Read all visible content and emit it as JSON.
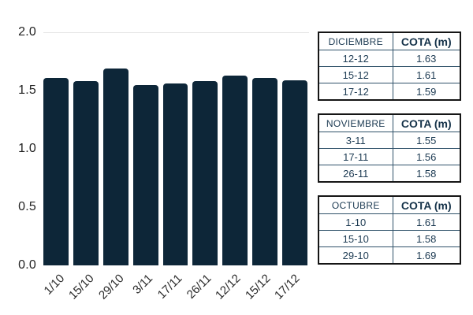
{
  "chart_data": {
    "type": "bar",
    "categories": [
      "1/10",
      "15/10",
      "29/10",
      "3/11",
      "17/11",
      "26/11",
      "12/12",
      "15/12",
      "17/12"
    ],
    "values": [
      1.61,
      1.58,
      1.69,
      1.55,
      1.56,
      1.58,
      1.63,
      1.61,
      1.59
    ],
    "title": "",
    "xlabel": "",
    "ylabel": "",
    "ylim": [
      0,
      2.0
    ],
    "yticks": [
      0.0,
      0.5,
      1.0,
      1.5,
      2.0
    ],
    "ytick_labels": [
      "0.0",
      "0.5",
      "1.0",
      "1.5",
      "2.0"
    ],
    "grid": "single horizontal gridline at y=2.0 only",
    "legend_position": "none",
    "bar_corner": "rounded-top"
  },
  "tables": [
    {
      "title": "DICIEMBRE",
      "value_header": "COTA (m)",
      "rows": [
        {
          "date": "12-12",
          "cota": "1.63"
        },
        {
          "date": "15-12",
          "cota": "1.61"
        },
        {
          "date": "17-12",
          "cota": "1.59"
        }
      ]
    },
    {
      "title": "NOVIEMBRE",
      "value_header": "COTA (m)",
      "rows": [
        {
          "date": "3-11",
          "cota": "1.55"
        },
        {
          "date": "17-11",
          "cota": "1.56"
        },
        {
          "date": "26-11",
          "cota": "1.58"
        }
      ]
    },
    {
      "title": "OCTUBRE",
      "value_header": "COTA (m)",
      "rows": [
        {
          "date": "1-10",
          "cota": "1.61"
        },
        {
          "date": "15-10",
          "cota": "1.58"
        },
        {
          "date": "29-10",
          "cota": "1.69"
        }
      ]
    }
  ],
  "colors": {
    "bar": "#0d2638",
    "gridline": "#e4e4e4",
    "axis_text": "#222222",
    "table_outer_border": "#151515",
    "table_inner_border": "#2f5169",
    "table_text": "#1c3a52",
    "table_value_text": "#16334a"
  }
}
